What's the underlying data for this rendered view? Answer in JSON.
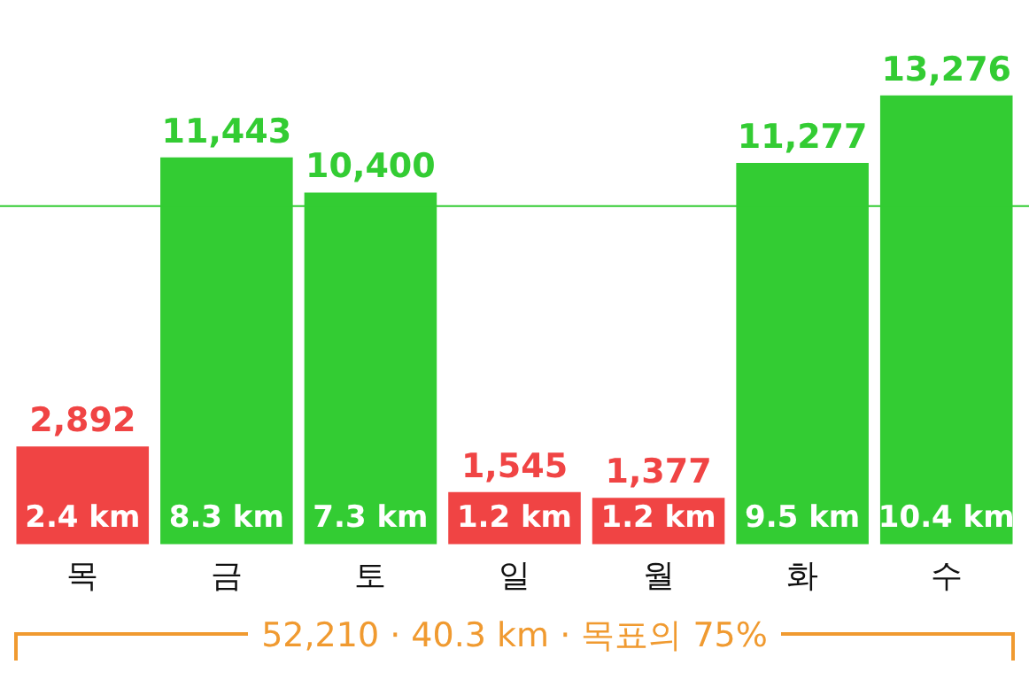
{
  "chart_data": {
    "type": "bar",
    "categories": [
      "목",
      "금",
      "토",
      "일",
      "월",
      "화",
      "수"
    ],
    "values": [
      2892,
      11443,
      10400,
      1545,
      1377,
      11277,
      13276
    ],
    "colors": [
      "#f04444",
      "#33cc33",
      "#33cc33",
      "#f04444",
      "#f04444",
      "#33cc33",
      "#33cc33"
    ],
    "value_labels": [
      "2,892",
      "11,443",
      "10,400",
      "1,545",
      "1,377",
      "11,277",
      "13,276"
    ],
    "tick_labels": "x",
    "grid": false,
    "legend": false,
    "ref_lines": [
      {
        "axis": "y",
        "value": 10000,
        "color": "#33cc33"
      }
    ],
    "annotations": [
      {
        "text": "2.4 km",
        "x": "목",
        "y": 0
      },
      {
        "text": "8.3 km",
        "x": "금",
        "y": 0
      },
      {
        "text": "7.3 km",
        "x": "토",
        "y": 0
      },
      {
        "text": "1.2 km",
        "x": "일",
        "y": 0
      },
      {
        "text": "1.2 km",
        "x": "월",
        "y": 0
      },
      {
        "text": "9.5 km",
        "x": "화",
        "y": 0
      },
      {
        "text": "10.4 km",
        "x": "수",
        "y": 0
      },
      "52,210 · 40.3 km · 목표의 75%"
    ]
  }
}
